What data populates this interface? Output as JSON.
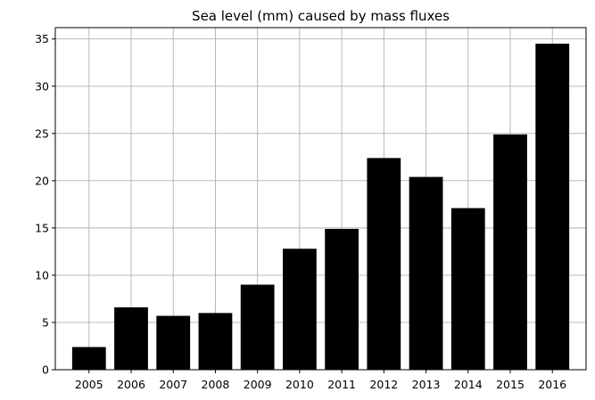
{
  "chart_data": {
    "type": "bar",
    "title": "Sea level (mm) caused by mass fluxes",
    "xlabel": "",
    "ylabel": "",
    "categories": [
      "2005",
      "2006",
      "2007",
      "2008",
      "2009",
      "2010",
      "2011",
      "2012",
      "2013",
      "2014",
      "2015",
      "2016"
    ],
    "values": [
      2.4,
      6.6,
      5.7,
      6.0,
      9.0,
      12.8,
      14.9,
      22.4,
      20.4,
      17.1,
      24.9,
      34.5
    ],
    "ylim": [
      0,
      36.2
    ],
    "yticks": [
      0,
      5,
      10,
      15,
      20,
      25,
      30,
      35
    ],
    "grid": true,
    "legend": "none",
    "bar_color": "#000000",
    "grid_color": "#b0b0b0"
  }
}
